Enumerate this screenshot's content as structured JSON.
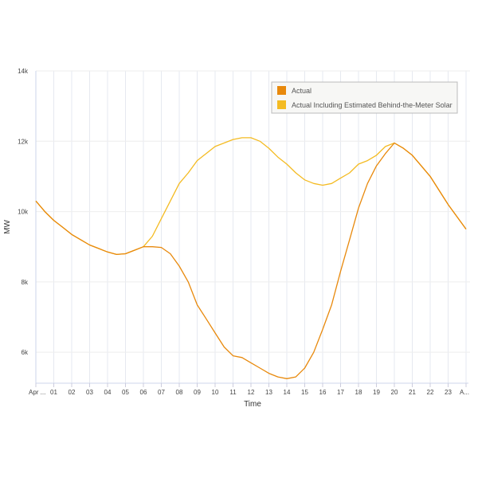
{
  "chart_data": {
    "type": "line",
    "title": "",
    "xlabel": "Time",
    "ylabel": "MW",
    "xlim": [
      0,
      24
    ],
    "ylim": [
      5120,
      14000
    ],
    "grid": true,
    "legend_position": "top-right",
    "x_tick_labels": [
      "Apr ...",
      "01",
      "02",
      "03",
      "04",
      "05",
      "06",
      "07",
      "08",
      "09",
      "10",
      "11",
      "12",
      "13",
      "14",
      "15",
      "16",
      "17",
      "18",
      "19",
      "20",
      "21",
      "22",
      "23",
      "A..."
    ],
    "y_ticks": [
      6000,
      8000,
      10000,
      12000,
      14000
    ],
    "y_tick_labels": [
      "6k",
      "8k",
      "10k",
      "12k",
      "14k"
    ],
    "x": [
      0,
      0.5,
      1,
      1.5,
      2,
      2.5,
      3,
      3.5,
      4,
      4.5,
      5,
      5.5,
      6,
      6.5,
      7,
      7.5,
      8,
      8.5,
      9,
      9.5,
      10,
      10.5,
      11,
      11.5,
      12,
      12.5,
      13,
      13.5,
      14,
      14.5,
      15,
      15.5,
      16,
      16.5,
      17,
      17.5,
      18,
      18.5,
      19,
      19.5,
      20,
      20.5,
      21,
      21.5,
      22,
      22.5,
      23,
      23.5,
      24
    ],
    "series": [
      {
        "name": "Actual Including Estimated Behind-the-Meter Solar",
        "color": "#f4bb22",
        "values": [
          10300,
          10000,
          9750,
          9550,
          9350,
          9200,
          9050,
          8950,
          8850,
          8780,
          8800,
          8900,
          9000,
          9300,
          9800,
          10300,
          10800,
          11100,
          11450,
          11650,
          11850,
          11950,
          12050,
          12100,
          12100,
          12000,
          11800,
          11550,
          11350,
          11100,
          10900,
          10800,
          10750,
          10800,
          10950,
          11100,
          11350,
          11450,
          11600,
          11850,
          11950,
          11800,
          11600,
          11300,
          11000,
          10600,
          10200,
          9850,
          9500
        ]
      },
      {
        "name": "Actual",
        "color": "#e8890c",
        "values": [
          10300,
          10000,
          9750,
          9550,
          9350,
          9200,
          9050,
          8950,
          8850,
          8780,
          8800,
          8900,
          9000,
          9000,
          8980,
          8800,
          8450,
          8000,
          7350,
          6950,
          6550,
          6150,
          5900,
          5850,
          5700,
          5550,
          5400,
          5300,
          5250,
          5300,
          5550,
          6000,
          6650,
          7350,
          8300,
          9200,
          10100,
          10800,
          11300,
          11650,
          11950,
          11800,
          11600,
          11300,
          11000,
          10600,
          10200,
          9850,
          9500
        ]
      }
    ],
    "legend": [
      "Actual",
      "Actual Including Estimated Behind-the-Meter Solar"
    ]
  }
}
